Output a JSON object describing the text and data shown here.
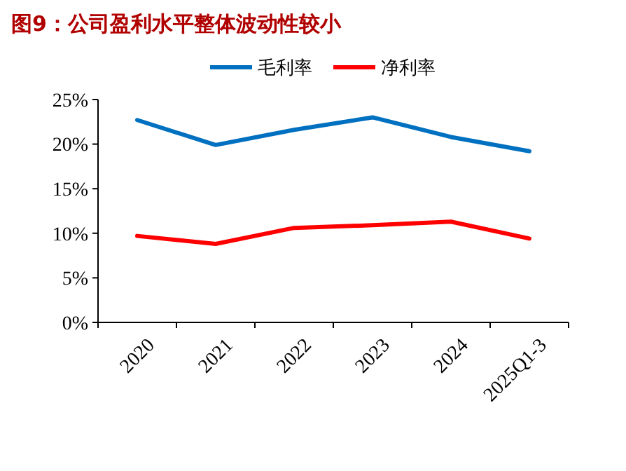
{
  "chart_data": {
    "type": "line",
    "title": "图9：公司盈利水平整体波动性较小",
    "categories": [
      "2020",
      "2021",
      "2022",
      "2023",
      "2024",
      "2025Q1-3"
    ],
    "series": [
      {
        "name": "毛利率",
        "color": "#0070c0",
        "values": [
          22.7,
          19.9,
          21.6,
          23.0,
          20.8,
          19.2
        ]
      },
      {
        "name": "净利率",
        "color": "#ff0000",
        "values": [
          9.7,
          8.8,
          10.6,
          10.9,
          11.3,
          9.4
        ]
      }
    ],
    "ylim": [
      0,
      25
    ],
    "yticks": [
      {
        "value": 0,
        "label": "0%"
      },
      {
        "value": 5,
        "label": "5%"
      },
      {
        "value": 10,
        "label": "10%"
      },
      {
        "value": 15,
        "label": "15%"
      },
      {
        "value": 20,
        "label": "20%"
      },
      {
        "value": 25,
        "label": "25%"
      }
    ],
    "grid": false,
    "legend": "top",
    "marker": "none",
    "line_style": "solid"
  }
}
